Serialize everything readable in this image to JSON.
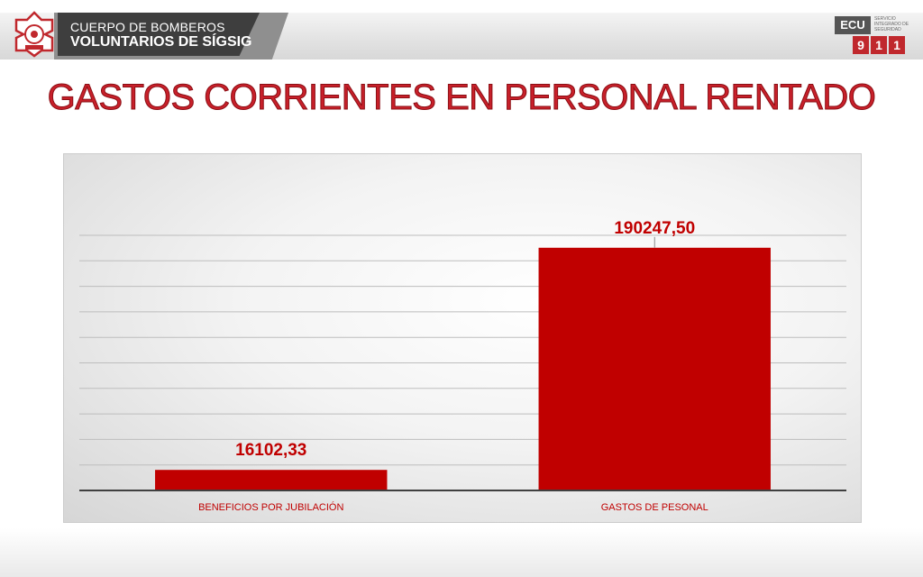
{
  "header": {
    "org_line1": "CUERPO DE BOMBEROS",
    "org_line2": "VOLUNTARIOS DE SÍGSIG",
    "ecu_logo": {
      "prefix": "ECU",
      "digits": [
        "9",
        "1",
        "1"
      ],
      "tagline": "SERVICIO INTEGRADO DE SEGURIDAD"
    }
  },
  "title": "GASTOS CORRIENTES EN PERSONAL RENTADO",
  "colors": {
    "bar": "#c00000",
    "title": "#c8202a",
    "label": "#c00000"
  },
  "chart_data": {
    "type": "bar",
    "title": "",
    "categories": [
      "BENEFICIOS POR JUBILACIÓN",
      "GASTOS DE PESONAL"
    ],
    "values": [
      16102.33,
      190247.5
    ],
    "data_labels": [
      "16102,33",
      "190247,50"
    ],
    "xlabel": "",
    "ylabel": "",
    "ylim": [
      0,
      200000
    ],
    "grid": true,
    "legend": "none"
  }
}
